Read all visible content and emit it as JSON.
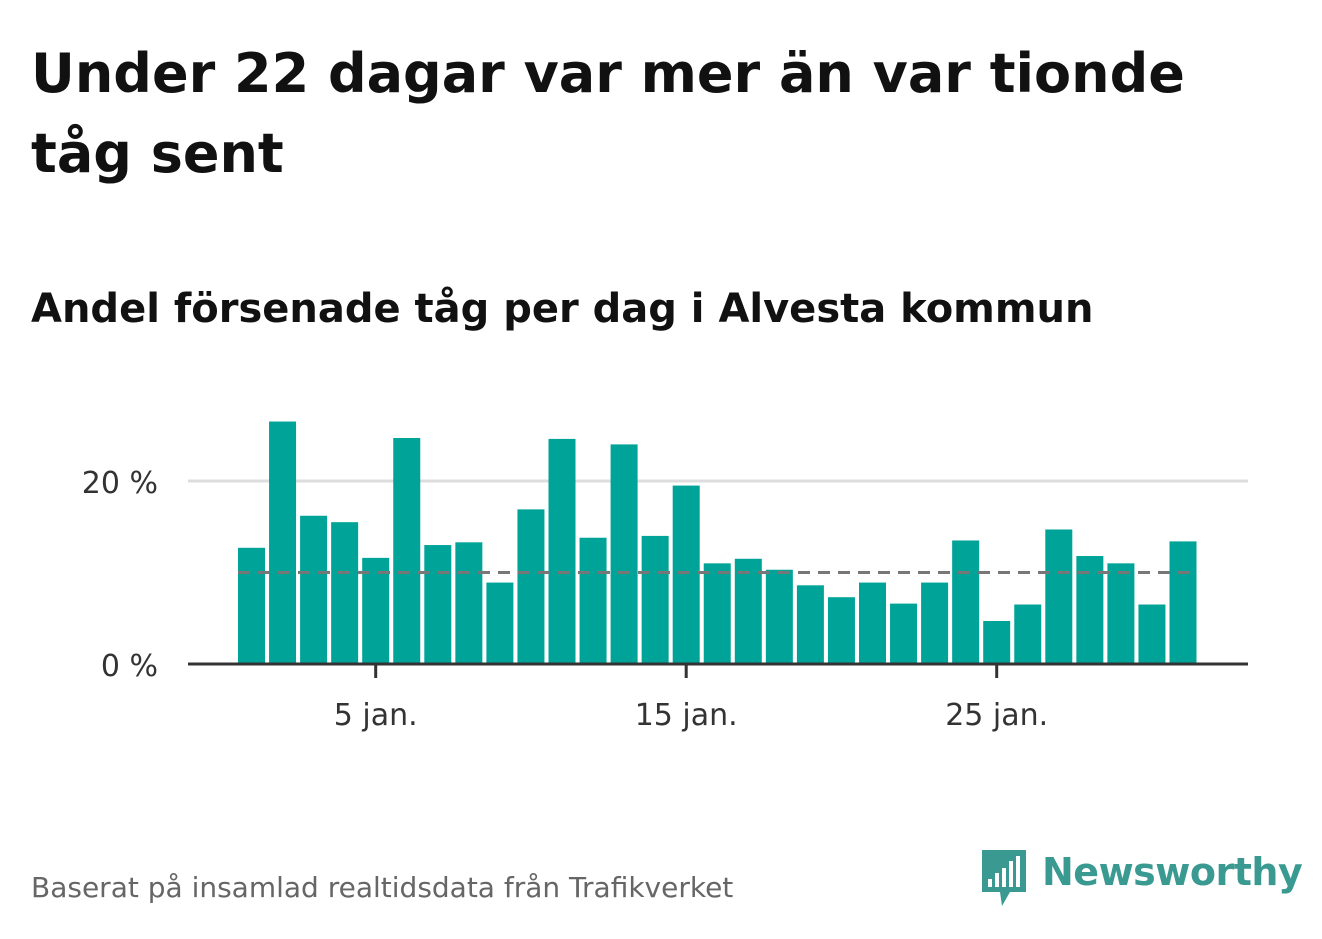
{
  "headline": "Under 22 dagar var mer än var tionde tåg sent",
  "subtitle": "Andel försenade tåg per dag i Alvesta kommun",
  "source": "Baserat på insamlad realtidsdata från Trafikverket",
  "brand": {
    "name": "Newsworthy",
    "icon": "newsworthy-logo-icon",
    "color": "#3a9a92"
  },
  "colors": {
    "bar": "#00a398",
    "reference_line": "#777777",
    "gridline": "#dddddd",
    "axis": "#333333"
  },
  "chart_data": {
    "type": "bar",
    "x": [
      1,
      2,
      3,
      4,
      5,
      6,
      7,
      8,
      9,
      10,
      11,
      12,
      13,
      14,
      15,
      16,
      17,
      18,
      19,
      20,
      21,
      22,
      23,
      24,
      25,
      26,
      27,
      28,
      29,
      30,
      31
    ],
    "values": [
      12.7,
      26.5,
      16.2,
      15.5,
      11.6,
      24.7,
      13.0,
      13.3,
      8.9,
      16.9,
      24.6,
      13.8,
      24.0,
      14.0,
      19.5,
      11.0,
      11.5,
      10.3,
      8.6,
      7.3,
      8.9,
      6.6,
      8.9,
      13.5,
      4.7,
      6.5,
      14.7,
      11.8,
      11.0,
      6.5,
      13.4
    ],
    "reference_line": 10,
    "ylim": [
      0,
      30
    ],
    "yticks": [
      {
        "value": 0,
        "label": "0 %"
      },
      {
        "value": 20,
        "label": "20 %"
      }
    ],
    "xticks": [
      {
        "value": 5,
        "label": "5 jan."
      },
      {
        "value": 15,
        "label": "15 jan."
      },
      {
        "value": 25,
        "label": "25 jan."
      }
    ],
    "title": "Andel försenade tåg per dag i Alvesta kommun",
    "xlabel": "",
    "ylabel": "",
    "grid": "horizontal",
    "legend": "none"
  }
}
